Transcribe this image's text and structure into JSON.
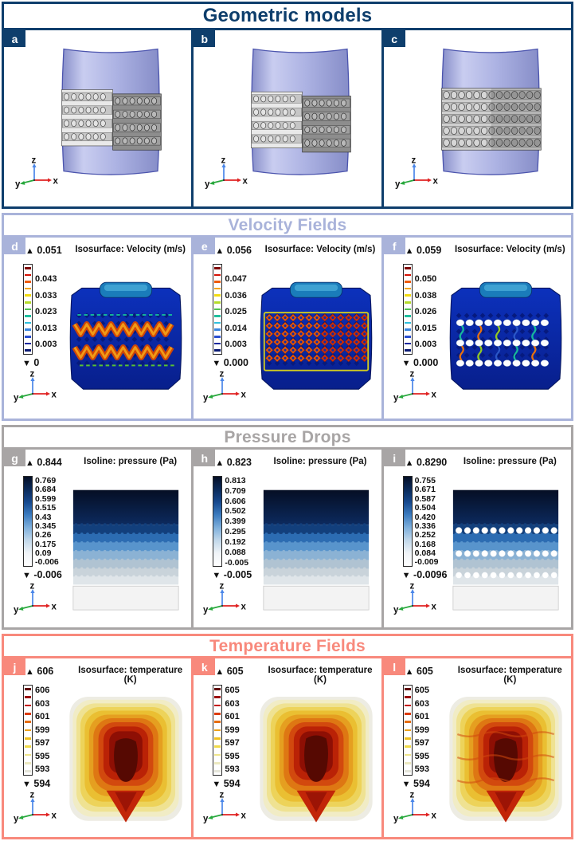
{
  "figure": {
    "markers": {
      "up": "▲",
      "down": "▼"
    },
    "axis": {
      "z": "z",
      "y": "y",
      "x": "x"
    },
    "sections": [
      {
        "title": "Geometric models",
        "accent": "#0e3e6c",
        "panels": [
          {
            "label": "a"
          },
          {
            "label": "b"
          },
          {
            "label": "c"
          }
        ]
      },
      {
        "title": "Velocity Fields",
        "accent": "#a9b3da",
        "cbar": {
          "type": "lines",
          "colors": [
            "#7e0000",
            "#d41104",
            "#ef5a08",
            "#f5a409",
            "#f2dc12",
            "#b4dc2a",
            "#52c253",
            "#1fbf9e",
            "#2fc0dd",
            "#3a86e0",
            "#2a4fd0",
            "#15279c",
            "#0a1a74"
          ]
        },
        "panels": [
          {
            "label": "d",
            "legend_title": "Isosurface: Velocity (m/s)",
            "max": "0.051",
            "min": "0",
            "ticks": [
              "0.043",
              "0.033",
              "0.023",
              "0.013",
              "0.003"
            ]
          },
          {
            "label": "e",
            "legend_title": "Isosurface: Velocity (m/s)",
            "max": "0.056",
            "min": "0.000",
            "ticks": [
              "0.047",
              "0.036",
              "0.025",
              "0.014",
              "0.003"
            ]
          },
          {
            "label": "f",
            "legend_title": "Isosurface: Velocity (m/s)",
            "max": "0.059",
            "min": "0.000",
            "ticks": [
              "0.050",
              "0.038",
              "0.026",
              "0.015",
              "0.003"
            ]
          }
        ]
      },
      {
        "title": "Pressure Drops",
        "accent": "#a8a5a5",
        "cbar": {
          "type": "gradient",
          "colors": [
            "#050f26",
            "#0a2a5a",
            "#16498e",
            "#3c7cc0",
            "#7fb0dc",
            "#c2d8ea",
            "#f0f4f8",
            "#ffffff"
          ]
        },
        "panels": [
          {
            "label": "g",
            "legend_title": "Isoline: pressure (Pa)",
            "max": "0.844",
            "min": "-0.006",
            "ticks": [
              "0.769",
              "0.684",
              "0.599",
              "0.515",
              "0.43",
              "0.345",
              "0.26",
              "0.175",
              "0.09",
              "-0.006"
            ]
          },
          {
            "label": "h",
            "legend_title": "Isoline: pressure (Pa)",
            "max": "0.823",
            "min": "-0.005",
            "ticks": [
              "0.813",
              "0.709",
              "0.606",
              "0.502",
              "0.399",
              "0.295",
              "0.192",
              "0.088",
              "-0.005"
            ]
          },
          {
            "label": "i",
            "legend_title": "Isoline: pressure (Pa)",
            "max": "0.8290",
            "min": "-0.0096",
            "ticks": [
              "0.755",
              "0.671",
              "0.587",
              "0.504",
              "0.420",
              "0.336",
              "0.252",
              "0.168",
              "0.084",
              "-0.009"
            ]
          }
        ]
      },
      {
        "title": "Temperature Fields",
        "accent": "#f8897c",
        "cbar": {
          "type": "lines",
          "colors": [
            "#600000",
            "#9c0202",
            "#c30b04",
            "#dd3b08",
            "#e76d10",
            "#eda019",
            "#f0c020",
            "#f0da4a",
            "#efe58a",
            "#ece9c0",
            "#e6e6da"
          ]
        },
        "panels": [
          {
            "label": "j",
            "legend_title": "Isosurface: temperature (K)",
            "max": "606",
            "min": "594",
            "ticks": [
              "606",
              "603",
              "601",
              "599",
              "597",
              "595",
              "593"
            ]
          },
          {
            "label": "k",
            "legend_title": "Isosurface: temperature (K)",
            "max": "605",
            "min": "594",
            "ticks": [
              "605",
              "603",
              "601",
              "599",
              "597",
              "595",
              "593"
            ]
          },
          {
            "label": "l",
            "legend_title": "Isosurface: temperature (K)",
            "max": "605",
            "min": "594",
            "ticks": [
              "605",
              "603",
              "601",
              "599",
              "597",
              "595",
              "593"
            ]
          }
        ]
      }
    ]
  }
}
